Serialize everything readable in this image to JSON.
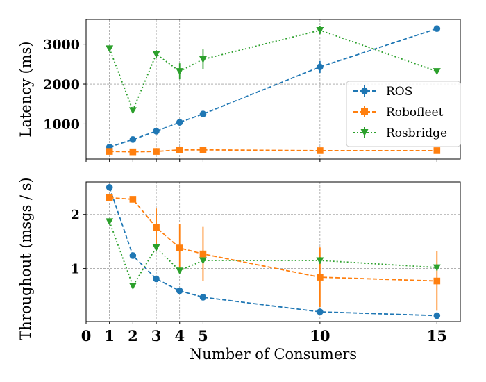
{
  "chart_data": [
    {
      "type": "line",
      "panel": "top",
      "ylabel": "Latency (ms)",
      "xlabel": "",
      "x": [
        1,
        2,
        3,
        4,
        5,
        10,
        15
      ],
      "xlim": [
        0,
        16
      ],
      "ylim": [
        120,
        3620
      ],
      "yticks": [
        1000,
        2000,
        3000
      ],
      "ytick_labels": [
        "1000",
        "2000",
        "3000"
      ],
      "grid": true,
      "legend_position": "right",
      "series": [
        {
          "name": "ROS",
          "color": "#1f77b4",
          "marker": "circle",
          "linestyle": "dashed",
          "values": [
            420,
            610,
            820,
            1040,
            1250,
            2430,
            3390
          ],
          "errors": [
            30,
            40,
            40,
            50,
            50,
            150,
            50
          ]
        },
        {
          "name": "Robofleet",
          "color": "#ff7f0e",
          "marker": "square",
          "linestyle": "dashed",
          "values": [
            310,
            300,
            310,
            350,
            350,
            330,
            330
          ],
          "errors": [
            10,
            10,
            10,
            20,
            20,
            10,
            10
          ]
        },
        {
          "name": "Rosbridge",
          "color": "#2ca02c",
          "marker": "triangle-down",
          "linestyle": "dotted",
          "values": [
            2890,
            1340,
            2750,
            2320,
            2620,
            3350,
            2320
          ],
          "errors": [
            40,
            60,
            100,
            200,
            250,
            100,
            50
          ]
        }
      ]
    },
    {
      "type": "line",
      "panel": "bottom",
      "ylabel": "Throughout (msgs / s)",
      "xlabel": "Number of Consumers",
      "x": [
        1,
        2,
        3,
        4,
        5,
        10,
        15
      ],
      "xticks": [
        0,
        1,
        2,
        3,
        4,
        5,
        10,
        15
      ],
      "xtick_labels": [
        "0",
        "1",
        "2",
        "3",
        "4",
        "5",
        "10",
        "15"
      ],
      "xlim": [
        0,
        16
      ],
      "ylim": [
        0.02,
        2.6
      ],
      "yticks": [
        1,
        2
      ],
      "ytick_labels": [
        "1",
        "2"
      ],
      "grid": true,
      "series": [
        {
          "name": "ROS",
          "color": "#1f77b4",
          "marker": "circle",
          "linestyle": "dashed",
          "values": [
            2.5,
            1.24,
            0.81,
            0.59,
            0.47,
            0.2,
            0.13
          ],
          "errors": [
            0.03,
            0.03,
            0.02,
            0.02,
            0.02,
            0.01,
            0.01
          ]
        },
        {
          "name": "Robofleet",
          "color": "#ff7f0e",
          "marker": "square",
          "linestyle": "dashed",
          "values": [
            2.31,
            2.28,
            1.76,
            1.38,
            1.27,
            0.84,
            0.77
          ],
          "errors": [
            0.04,
            0.05,
            0.35,
            0.45,
            0.5,
            0.55,
            0.55
          ]
        },
        {
          "name": "Rosbridge",
          "color": "#2ca02c",
          "marker": "triangle-down",
          "linestyle": "dotted",
          "values": [
            1.87,
            0.68,
            1.39,
            0.96,
            1.15,
            1.15,
            1.02
          ],
          "errors": [
            0.03,
            0.05,
            0.06,
            0.05,
            0.05,
            0.06,
            0.06
          ]
        }
      ]
    }
  ]
}
